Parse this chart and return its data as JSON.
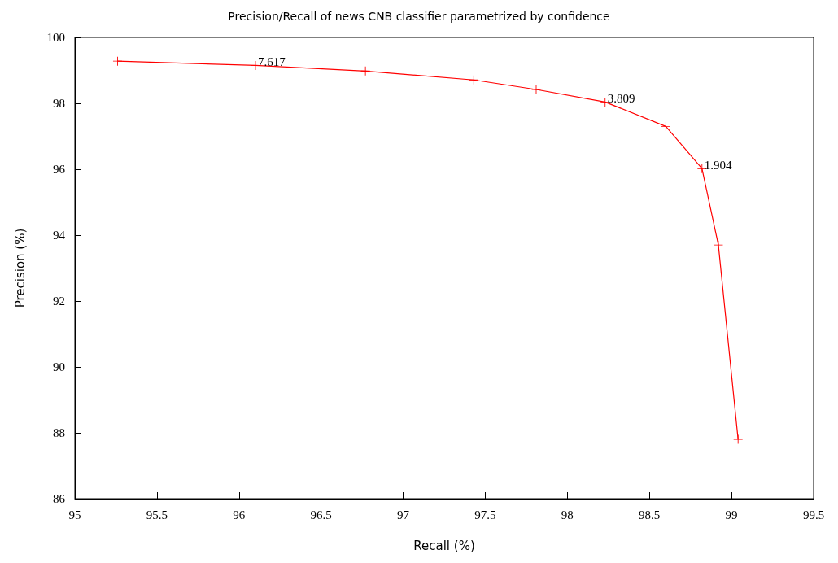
{
  "chart_data": {
    "type": "line",
    "title": "Precision/Recall of news CNB classifier parametrized by confidence",
    "xlabel": "Recall (%)",
    "ylabel": "Precision (%)",
    "x": [
      95.26,
      96.1,
      96.77,
      97.43,
      97.81,
      98.23,
      98.6,
      98.82,
      98.92,
      99.04
    ],
    "series": [
      {
        "color": "#ff0000",
        "values": [
          99.28,
          99.15,
          98.98,
          98.71,
          98.42,
          98.04,
          97.3,
          96.02,
          93.7,
          87.8
        ]
      }
    ],
    "xlim": [
      95,
      99.5
    ],
    "xticks": [
      95,
      95.5,
      96,
      96.5,
      97,
      97.5,
      98,
      98.5,
      99,
      99.5
    ],
    "ylim": [
      86,
      100
    ],
    "yticks": [
      86,
      88,
      90,
      92,
      94,
      96,
      98,
      100
    ],
    "annotations": [
      {
        "text": "7.617",
        "x": 96.1,
        "y": 99.15
      },
      {
        "text": "3.809",
        "x": 98.23,
        "y": 98.04
      },
      {
        "text": "1.904",
        "x": 98.82,
        "y": 96.02
      }
    ],
    "grid": false,
    "marker": "cross",
    "line_style": "solid"
  }
}
